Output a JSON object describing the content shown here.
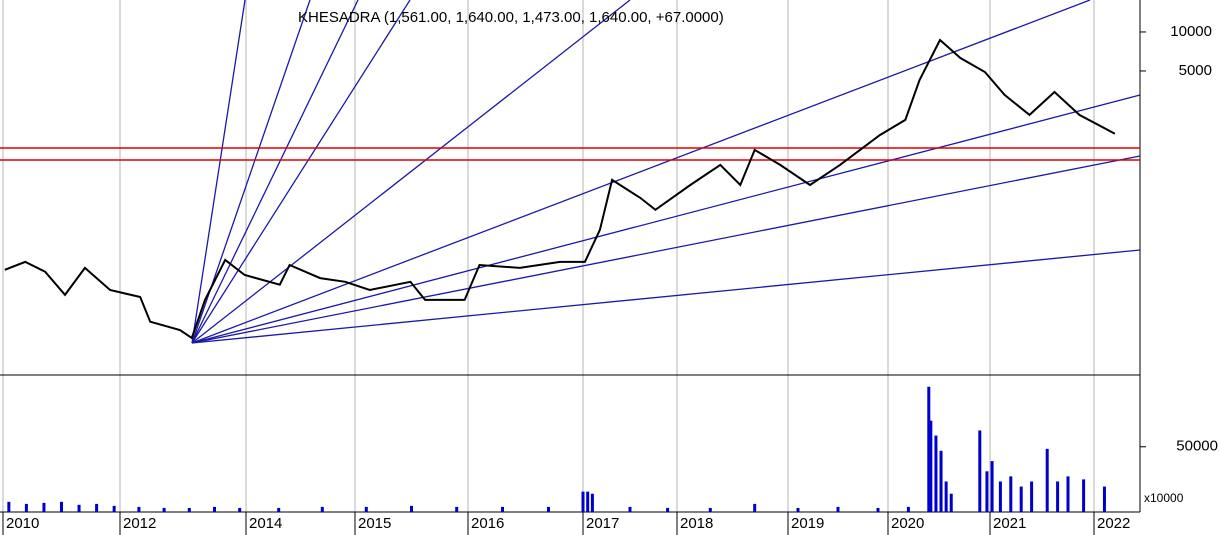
{
  "chart_data": [
    {
      "type": "line",
      "title": "KHESADRA (1,561.00, 1,640.00, 1,473.00, 1,640.00, +67.0000)",
      "log_scale": true,
      "grid": true,
      "color": "#000000",
      "xlim": [
        2009.97,
        2022.44
      ],
      "xticks": [
        2010,
        2012,
        2014,
        2015,
        2016,
        2017,
        2018,
        2019,
        2020,
        2021,
        2022
      ],
      "ylim": [
        22.5,
        17650
      ],
      "yticks": [
        5000,
        10000
      ],
      "x": [
        2010.03,
        2010.38,
        2010.72,
        2011.06,
        2011.4,
        2011.83,
        2012.32,
        2012.48,
        2012.95,
        2013.14,
        2013.35,
        2013.67,
        2013.98,
        2014.31,
        2014.4,
        2014.68,
        2014.91,
        2015.13,
        2015.49,
        2015.62,
        2015.97,
        2016.1,
        2016.45,
        2016.8,
        2017.02,
        2017.18,
        2017.31,
        2017.61,
        2017.77,
        2018.12,
        2018.39,
        2018.57,
        2018.7,
        2018.93,
        2019.22,
        2019.52,
        2019.72,
        2019.92,
        2020.17,
        2020.31,
        2020.51,
        2020.71,
        2020.95,
        2021.14,
        2021.38,
        2021.62,
        2021.86,
        2022.2
      ],
      "values": [
        146,
        168,
        141,
        93.5,
        151,
        102,
        90,
        58,
        50,
        43.5,
        85.5,
        174,
        133,
        112,
        159,
        126,
        118,
        102,
        118,
        85.5,
        85.5,
        159,
        151,
        168,
        168,
        297,
        721,
        524,
        424,
        659,
        942,
        659,
        1230,
        942,
        659,
        942,
        1230,
        1603,
        2094,
        4266,
        8670,
        6300,
        4910,
        3270,
        2290,
        3440,
        2290,
        1640
      ],
      "hlines": [
        {
          "value": 1273,
          "color": "#e00000"
        },
        {
          "value": 1028,
          "color": "#e00000"
        }
      ]
    },
    {
      "type": "bar",
      "color": "#0000cc",
      "y_unit_label": "x10000",
      "ylim": [
        0,
        105000
      ],
      "yticks": [
        50000
      ],
      "x": [
        2010.1,
        2010.4,
        2010.7,
        2011.0,
        2011.3,
        2011.6,
        2011.9,
        2012.3,
        2012.7,
        2013.1,
        2013.5,
        2013.9,
        2014.3,
        2014.7,
        2015.1,
        2015.5,
        2015.9,
        2016.3,
        2016.7,
        2017.0,
        2017.05,
        2017.1,
        2017.5,
        2017.9,
        2018.3,
        2018.7,
        2019.1,
        2019.5,
        2019.9,
        2020.2,
        2020.4,
        2020.42,
        2020.47,
        2020.52,
        2020.57,
        2020.62,
        2020.9,
        2020.97,
        2021.02,
        2021.1,
        2021.2,
        2021.3,
        2021.4,
        2021.55,
        2021.65,
        2021.75,
        2021.9,
        2022.1
      ],
      "values": [
        7800,
        6200,
        7000,
        7800,
        5500,
        6200,
        4700,
        3900,
        3100,
        3100,
        3900,
        3100,
        3100,
        3900,
        3900,
        4700,
        3900,
        3900,
        3900,
        15600,
        15600,
        14000,
        3900,
        3100,
        3100,
        6200,
        3100,
        3900,
        3100,
        3900,
        96000,
        70000,
        58600,
        46900,
        23400,
        14000,
        62500,
        31200,
        39000,
        23400,
        27300,
        19500,
        23400,
        48400,
        23400,
        27300,
        25000,
        19500
      ]
    }
  ]
}
